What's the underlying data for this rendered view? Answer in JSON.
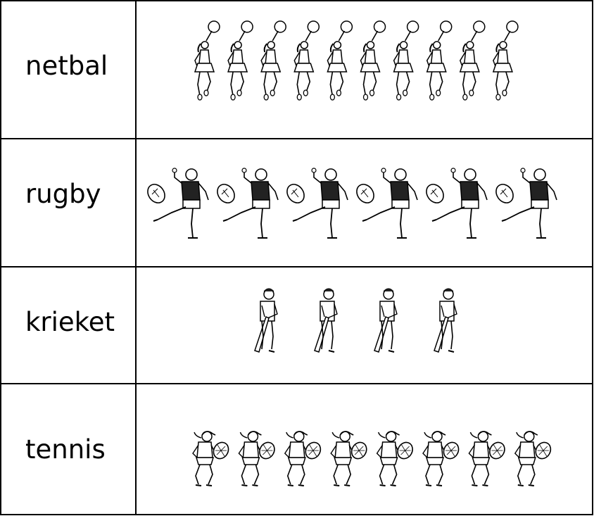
{
  "chart_data": {
    "type": "pictograph",
    "categories": [
      "netbal",
      "rugby",
      "krieket",
      "tennis"
    ],
    "values": [
      10,
      6,
      4,
      8
    ],
    "icons": [
      "netball-player-icon",
      "rugby-player-kicking-icon",
      "cricket-batsman-icon",
      "tennis-player-icon"
    ],
    "title": "",
    "xlabel": "",
    "ylabel": ""
  },
  "colors": {
    "ink": "#000000",
    "background": "#ffffff"
  }
}
